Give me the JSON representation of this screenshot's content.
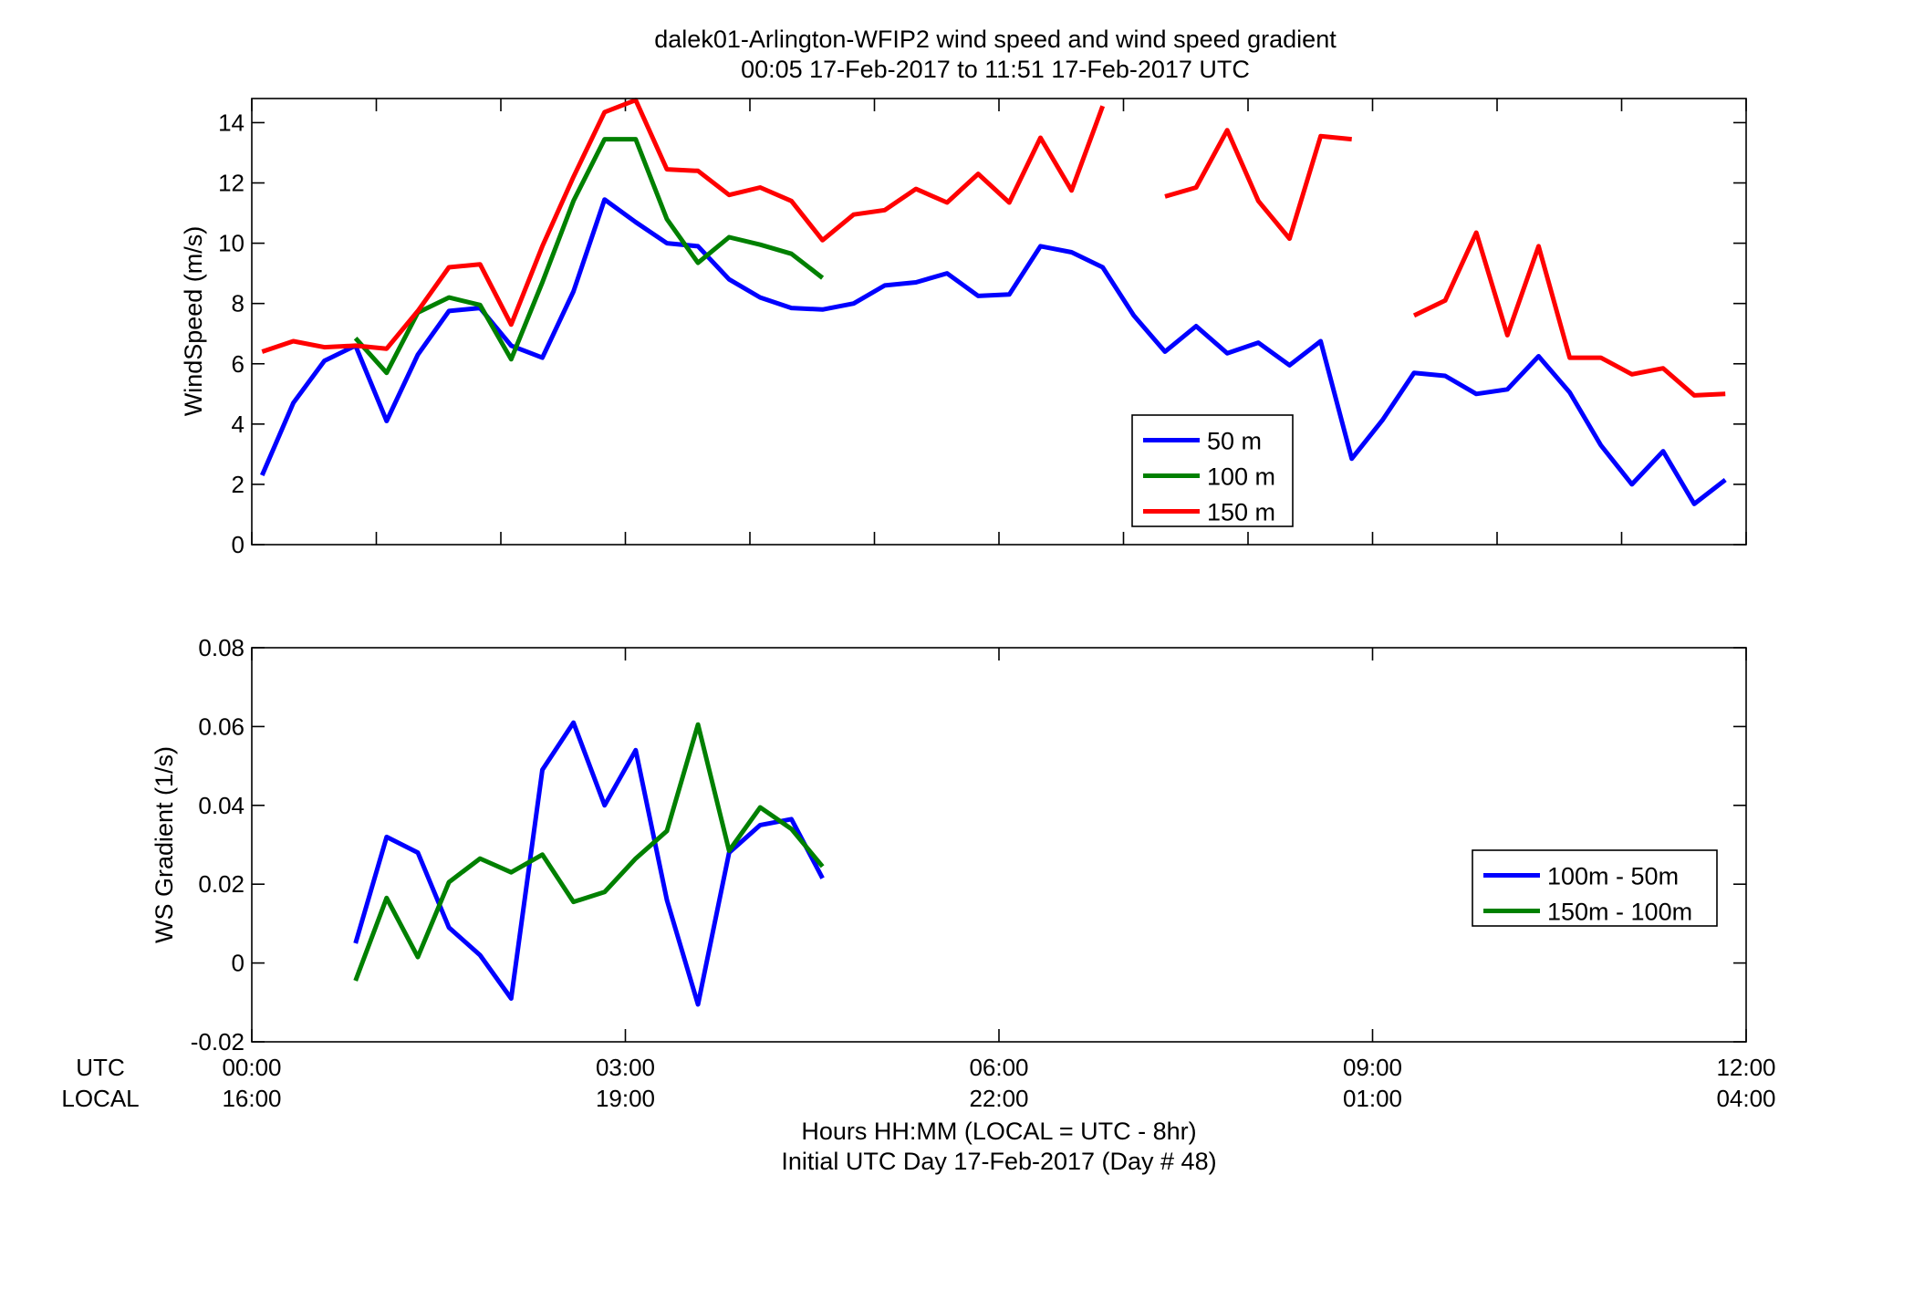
{
  "figure": {
    "title_line1": "dalek01-Arlington-WFIP2  wind speed and wind speed gradient",
    "title_line2": "00:05 17-Feb-2017 to 11:51 17-Feb-2017  UTC",
    "xlabel_line1": "Hours HH:MM  (LOCAL = UTC - 8hr)",
    "xlabel_line2": "Initial UTC Day 17-Feb-2017 (Day # 48)",
    "utc_row_label": "UTC",
    "local_row_label": "LOCAL"
  },
  "chart_data": [
    {
      "type": "line",
      "ylabel": "WindSpeed (m/s)",
      "xlim": [
        0,
        12
      ],
      "ylim": [
        0,
        14.8
      ],
      "y_ticks": [
        0,
        2,
        4,
        6,
        8,
        10,
        12,
        14
      ],
      "y_tick_labels": [
        "0",
        "2",
        "4",
        "6",
        "8",
        "10",
        "12",
        "14"
      ],
      "x_ticks_minor_hours": [
        0,
        1,
        2,
        3,
        4,
        5,
        6,
        7,
        8,
        9,
        10,
        11,
        12
      ],
      "legend_position": "lower-right",
      "series": [
        {
          "name": "50 m",
          "color": "#0000ff",
          "x": [
            0.083,
            0.333,
            0.583,
            0.833,
            1.083,
            1.333,
            1.583,
            1.833,
            2.083,
            2.333,
            2.583,
            2.833,
            3.083,
            3.333,
            3.583,
            3.833,
            4.083,
            4.333,
            4.583,
            4.833,
            5.083,
            5.333,
            5.583,
            5.833,
            6.083,
            6.333,
            6.583,
            6.833,
            7.083,
            7.333,
            7.583,
            7.833,
            8.083,
            8.333,
            8.583,
            8.833,
            9.083,
            9.333,
            9.583,
            9.833,
            10.083,
            10.333,
            10.583,
            10.833,
            11.083,
            11.333,
            11.583,
            11.833
          ],
          "y": [
            2.3,
            4.7,
            6.1,
            6.6,
            4.1,
            6.3,
            7.75,
            7.85,
            6.6,
            6.2,
            8.4,
            11.45,
            10.7,
            10.0,
            9.9,
            8.8,
            8.2,
            7.85,
            7.8,
            8.0,
            8.6,
            8.7,
            9.0,
            8.25,
            8.3,
            9.9,
            9.7,
            9.2,
            7.6,
            6.4,
            7.25,
            6.35,
            6.7,
            5.95,
            6.75,
            2.85,
            4.15,
            5.7,
            5.6,
            5.0,
            5.15,
            6.25,
            5.05,
            3.3,
            2.0,
            3.1,
            1.35,
            2.15
          ]
        },
        {
          "name": "100 m",
          "color": "#008000",
          "x": [
            0.833,
            1.083,
            1.333,
            1.583,
            1.833,
            2.083,
            2.333,
            2.583,
            2.833,
            3.083,
            3.333,
            3.583,
            3.833,
            4.083,
            4.333,
            4.583
          ],
          "y": [
            6.85,
            5.7,
            7.7,
            8.2,
            7.95,
            6.15,
            8.7,
            11.4,
            13.45,
            13.45,
            10.8,
            9.35,
            10.2,
            9.95,
            9.65,
            8.85
          ]
        },
        {
          "name": "150 m",
          "color": "#ff0000",
          "x": [
            0.083,
            0.333,
            0.583,
            0.833,
            1.083,
            1.333,
            1.583,
            1.833,
            2.083,
            2.333,
            2.583,
            2.833,
            3.083,
            3.333,
            3.583,
            3.833,
            4.083,
            4.333,
            4.583,
            4.833,
            5.083,
            5.333,
            5.583,
            5.833,
            6.083,
            6.333,
            6.583,
            6.833,
            7.083,
            7.333,
            7.583,
            7.833,
            8.083,
            8.333,
            8.583,
            8.833,
            9.083,
            9.333,
            9.583,
            9.833,
            10.083,
            10.333,
            10.583,
            10.833,
            11.083,
            11.333,
            11.583,
            11.833
          ],
          "y": [
            6.4,
            6.75,
            6.55,
            6.6,
            6.5,
            7.75,
            9.2,
            9.3,
            7.3,
            9.9,
            12.2,
            14.35,
            14.75,
            12.45,
            12.4,
            11.6,
            11.85,
            11.4,
            10.1,
            10.95,
            11.1,
            11.8,
            11.35,
            12.3,
            11.35,
            13.5,
            11.75,
            14.55,
            null,
            11.55,
            11.85,
            13.75,
            11.4,
            10.15,
            13.55,
            13.45,
            null,
            7.6,
            8.1,
            10.35,
            6.95,
            9.9,
            6.2,
            6.2,
            5.65,
            5.85,
            4.95,
            5.0
          ]
        }
      ]
    },
    {
      "type": "line",
      "ylabel": "WS Gradient (1/s)",
      "xlim": [
        0,
        12
      ],
      "ylim": [
        -0.02,
        0.08
      ],
      "y_ticks": [
        -0.02,
        0,
        0.02,
        0.04,
        0.06,
        0.08
      ],
      "y_tick_labels": [
        "-0.02",
        "0",
        "0.02",
        "0.04",
        "0.06",
        "0.08"
      ],
      "x_ticks_major": [
        0,
        3,
        6,
        9,
        12
      ],
      "x_tick_labels_utc": [
        "00:00",
        "03:00",
        "06:00",
        "09:00",
        "12:00"
      ],
      "x_tick_labels_local": [
        "16:00",
        "19:00",
        "22:00",
        "01:00",
        "04:00"
      ],
      "legend_position": "right",
      "series": [
        {
          "name": "100m - 50m",
          "color": "#0000ff",
          "x": [
            0.833,
            1.083,
            1.333,
            1.583,
            1.833,
            2.083,
            2.333,
            2.583,
            2.833,
            3.083,
            3.333,
            3.583,
            3.833,
            4.083,
            4.333,
            4.583
          ],
          "y": [
            0.005,
            0.032,
            0.028,
            0.009,
            0.002,
            -0.009,
            0.049,
            0.061,
            0.04,
            0.054,
            0.016,
            -0.0105,
            0.028,
            0.035,
            0.0365,
            0.0215
          ]
        },
        {
          "name": "150m - 100m",
          "color": "#008000",
          "x": [
            0.833,
            1.083,
            1.333,
            1.583,
            1.833,
            2.083,
            2.333,
            2.583,
            2.833,
            3.083,
            3.333,
            3.583,
            3.833,
            4.083,
            4.333,
            4.583
          ],
          "y": [
            -0.0045,
            0.0165,
            0.0015,
            0.0205,
            0.0265,
            0.023,
            0.0275,
            0.0155,
            0.018,
            0.0265,
            0.0335,
            0.0605,
            0.0285,
            0.0395,
            0.034,
            0.0245
          ]
        }
      ]
    }
  ]
}
